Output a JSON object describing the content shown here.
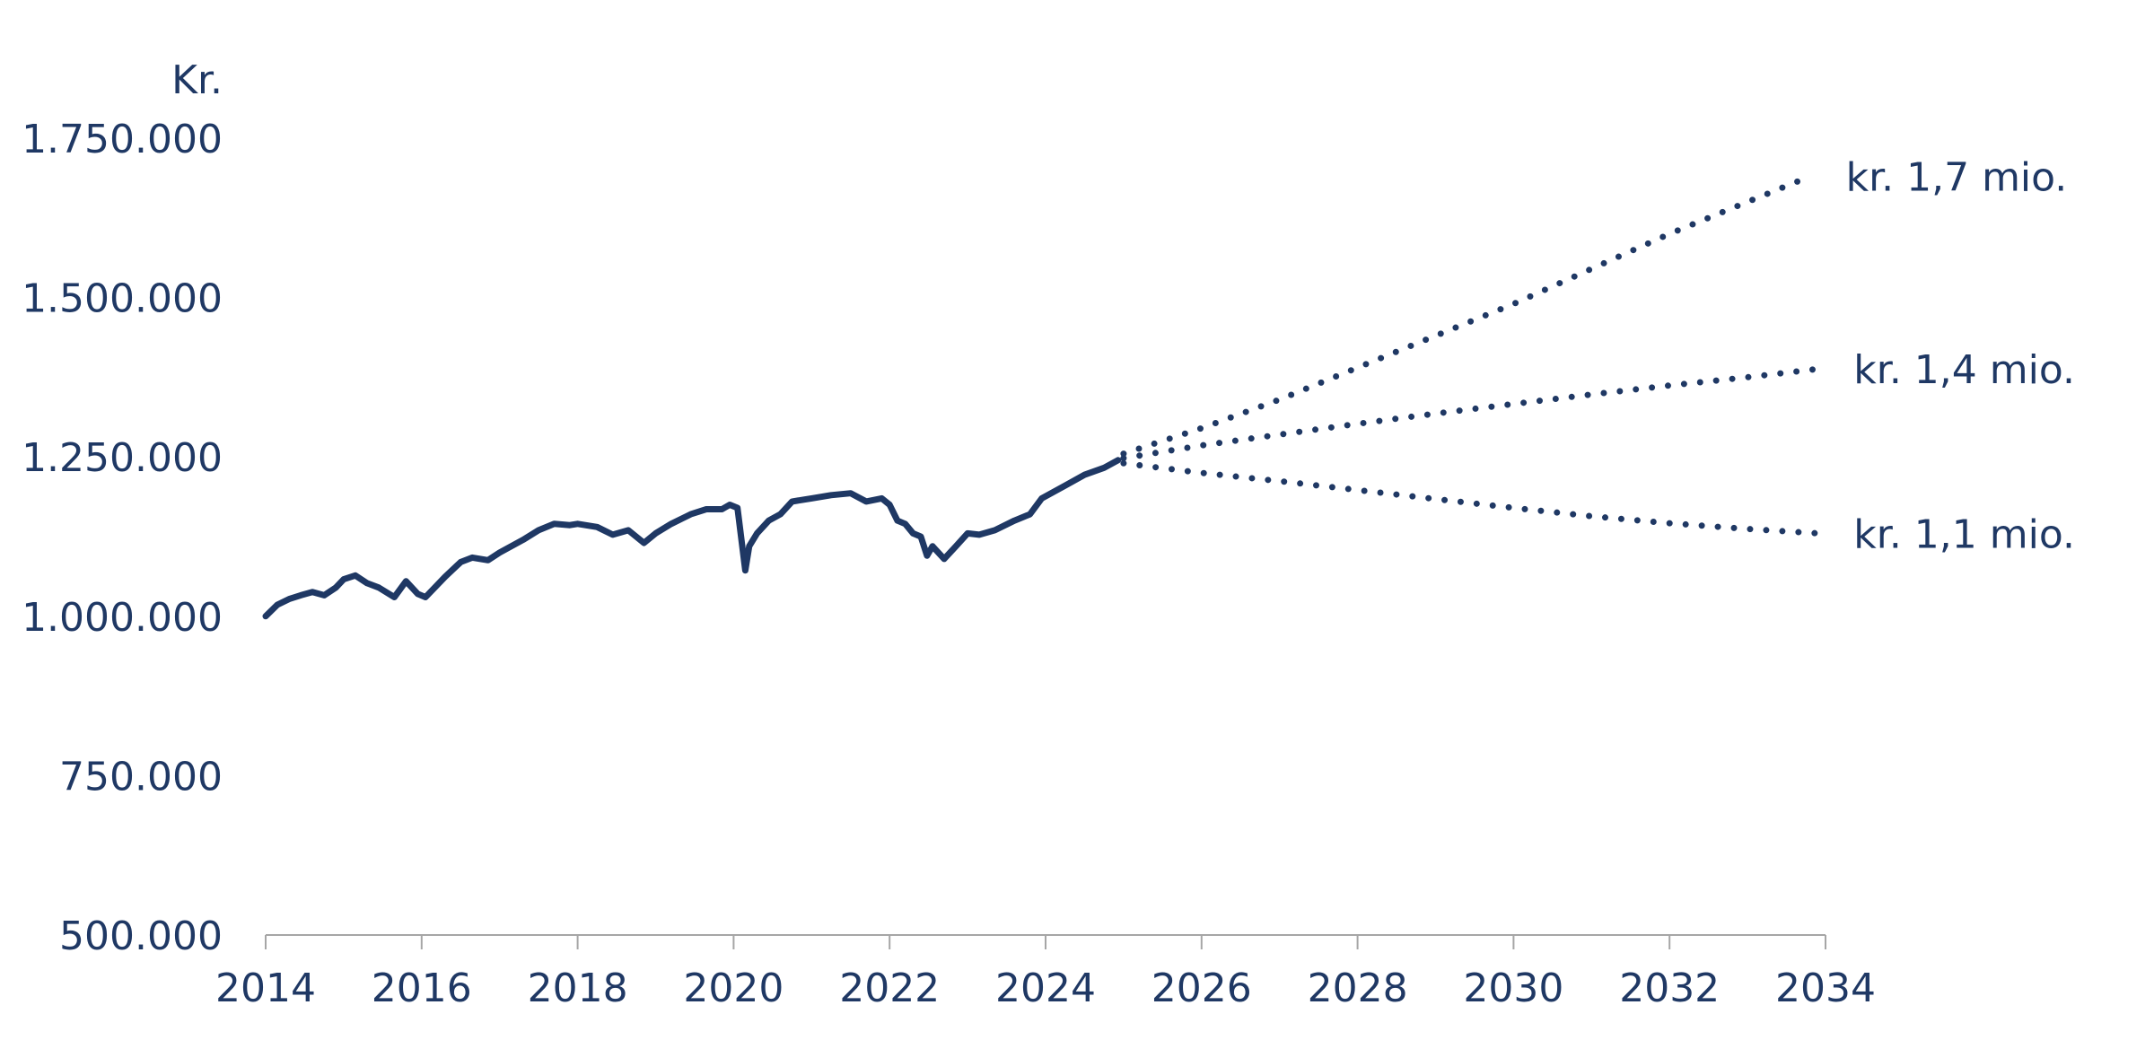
{
  "chart_data": {
    "type": "line",
    "title": "",
    "ylabel": "Kr.",
    "xlabel": "",
    "xlim": [
      2014,
      2034
    ],
    "ylim": [
      500000,
      1750000
    ],
    "x_ticks": [
      2014,
      2016,
      2018,
      2020,
      2022,
      2024,
      2026,
      2028,
      2030,
      2032,
      2034
    ],
    "y_ticks": [
      500000,
      750000,
      1000000,
      1250000,
      1500000,
      1750000
    ],
    "y_tick_labels": [
      "500.000",
      "750.000",
      "1.000.000",
      "1.250.000",
      "1.500.000",
      "1.750.000"
    ],
    "grid": false,
    "legend": "none",
    "line_color": "#1f3864",
    "series": [
      {
        "style": "solid",
        "x": [
          2014.0,
          2014.15,
          2014.3,
          2014.45,
          2014.6,
          2014.75,
          2014.9,
          2015.0,
          2015.15,
          2015.3,
          2015.45,
          2015.65,
          2015.8,
          2015.95,
          2016.05,
          2016.3,
          2016.5,
          2016.65,
          2016.85,
          2017.0,
          2017.3,
          2017.5,
          2017.7,
          2017.9,
          2018.0,
          2018.25,
          2018.45,
          2018.65,
          2018.85,
          2019.0,
          2019.2,
          2019.45,
          2019.65,
          2019.85,
          2019.95,
          2020.05,
          2020.15,
          2020.2,
          2020.3,
          2020.45,
          2020.6,
          2020.75,
          2020.9,
          2021.0,
          2021.25,
          2021.5,
          2021.7,
          2021.9,
          2022.0,
          2022.1,
          2022.2,
          2022.3,
          2022.4,
          2022.48,
          2022.55,
          2022.7,
          2022.85,
          2023.0,
          2023.15,
          2023.35,
          2023.6,
          2023.8,
          2023.95,
          2024.1,
          2024.25,
          2024.5,
          2024.75,
          2024.93
        ],
        "y": [
          1000000,
          1018000,
          1027000,
          1033000,
          1038000,
          1033000,
          1045000,
          1058000,
          1064000,
          1052000,
          1045000,
          1030000,
          1055000,
          1035000,
          1030000,
          1062000,
          1085000,
          1092000,
          1088000,
          1100000,
          1120000,
          1135000,
          1145000,
          1143000,
          1145000,
          1140000,
          1128000,
          1135000,
          1115000,
          1130000,
          1145000,
          1160000,
          1168000,
          1168000,
          1175000,
          1170000,
          1072000,
          1110000,
          1130000,
          1150000,
          1160000,
          1180000,
          1183000,
          1185000,
          1190000,
          1193000,
          1180000,
          1185000,
          1175000,
          1150000,
          1145000,
          1130000,
          1125000,
          1095000,
          1110000,
          1090000,
          1110000,
          1130000,
          1128000,
          1135000,
          1150000,
          1160000,
          1185000,
          1195000,
          1205000,
          1222000,
          1233000,
          1245000
        ]
      },
      {
        "style": "dotted",
        "label": "kr. 1,7 mio.",
        "x": [
          2025.0,
          2026.0,
          2027.0,
          2028.0,
          2029.0,
          2030.0,
          2031.0,
          2032.0,
          2033.0,
          2033.8
        ],
        "y": [
          1255000,
          1295000,
          1340000,
          1390000,
          1440000,
          1490000,
          1545000,
          1600000,
          1650000,
          1690000
        ]
      },
      {
        "style": "dotted",
        "label": "kr. 1,4 mio.",
        "x": [
          2025.0,
          2026.0,
          2027.0,
          2028.0,
          2029.0,
          2030.0,
          2031.0,
          2032.0,
          2033.0,
          2033.9
        ],
        "y": [
          1248000,
          1268000,
          1285000,
          1302000,
          1318000,
          1333000,
          1348000,
          1362000,
          1375000,
          1388000
        ]
      },
      {
        "style": "dotted",
        "label": "kr. 1,1 mio.",
        "x": [
          2025.0,
          2026.0,
          2027.0,
          2028.0,
          2029.0,
          2030.0,
          2031.0,
          2032.0,
          2033.0,
          2033.9
        ],
        "y": [
          1240000,
          1225000,
          1212000,
          1198000,
          1184000,
          1170000,
          1157000,
          1146000,
          1137000,
          1130000
        ]
      }
    ]
  }
}
